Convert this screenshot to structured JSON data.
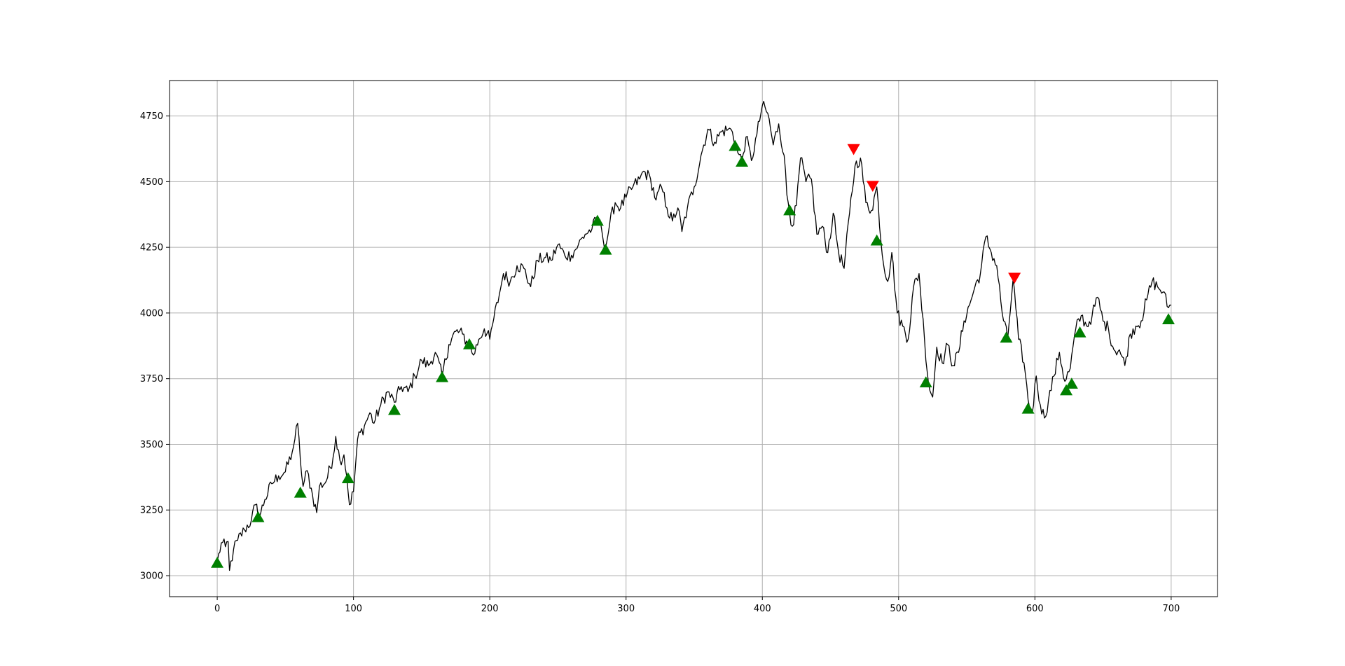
{
  "chart_data": {
    "type": "line",
    "title": "",
    "xlabel": "",
    "ylabel": "",
    "xlim": [
      -35,
      734
    ],
    "ylim": [
      2920,
      4885
    ],
    "grid": true,
    "xticks": [
      0,
      100,
      200,
      300,
      400,
      500,
      600,
      700
    ],
    "yticks": [
      3000,
      3250,
      3500,
      3750,
      4000,
      4250,
      4500,
      4750
    ],
    "xtick_labels": [
      "0",
      "100",
      "200",
      "300",
      "400",
      "500",
      "600",
      "700"
    ],
    "ytick_labels": [
      "3000",
      "3250",
      "3500",
      "3750",
      "4000",
      "4250",
      "4500",
      "4750"
    ],
    "line_color": "#000000",
    "buy_color": "#008000",
    "sell_color": "#ff0000",
    "price_anchors": [
      [
        0,
        3050
      ],
      [
        3,
        3125
      ],
      [
        6,
        3110
      ],
      [
        8,
        3130
      ],
      [
        9,
        3020
      ],
      [
        12,
        3100
      ],
      [
        15,
        3135
      ],
      [
        20,
        3175
      ],
      [
        25,
        3210
      ],
      [
        28,
        3270
      ],
      [
        31,
        3225
      ],
      [
        35,
        3290
      ],
      [
        40,
        3350
      ],
      [
        45,
        3380
      ],
      [
        50,
        3395
      ],
      [
        55,
        3470
      ],
      [
        57,
        3520
      ],
      [
        59,
        3580
      ],
      [
        61,
        3440
      ],
      [
        63,
        3340
      ],
      [
        66,
        3400
      ],
      [
        70,
        3305
      ],
      [
        73,
        3240
      ],
      [
        75,
        3340
      ],
      [
        80,
        3360
      ],
      [
        85,
        3450
      ],
      [
        87,
        3530
      ],
      [
        90,
        3440
      ],
      [
        93,
        3460
      ],
      [
        95,
        3380
      ],
      [
        97,
        3270
      ],
      [
        100,
        3320
      ],
      [
        103,
        3520
      ],
      [
        108,
        3570
      ],
      [
        112,
        3620
      ],
      [
        115,
        3580
      ],
      [
        120,
        3650
      ],
      [
        125,
        3700
      ],
      [
        130,
        3660
      ],
      [
        135,
        3720
      ],
      [
        140,
        3700
      ],
      [
        145,
        3760
      ],
      [
        150,
        3820
      ],
      [
        155,
        3800
      ],
      [
        160,
        3850
      ],
      [
        165,
        3760
      ],
      [
        170,
        3880
      ],
      [
        175,
        3930
      ],
      [
        180,
        3920
      ],
      [
        185,
        3870
      ],
      [
        188,
        3840
      ],
      [
        192,
        3900
      ],
      [
        196,
        3940
      ],
      [
        200,
        3900
      ],
      [
        203,
        3980
      ],
      [
        207,
        4070
      ],
      [
        210,
        4150
      ],
      [
        215,
        4120
      ],
      [
        220,
        4180
      ],
      [
        225,
        4170
      ],
      [
        230,
        4100
      ],
      [
        235,
        4200
      ],
      [
        240,
        4210
      ],
      [
        245,
        4200
      ],
      [
        250,
        4260
      ],
      [
        255,
        4220
      ],
      [
        260,
        4220
      ],
      [
        265,
        4260
      ],
      [
        270,
        4300
      ],
      [
        275,
        4320
      ],
      [
        279,
        4365
      ],
      [
        282,
        4320
      ],
      [
        285,
        4250
      ],
      [
        288,
        4340
      ],
      [
        292,
        4420
      ],
      [
        296,
        4400
      ],
      [
        300,
        4440
      ],
      [
        305,
        4480
      ],
      [
        310,
        4510
      ],
      [
        313,
        4540
      ],
      [
        318,
        4510
      ],
      [
        322,
        4430
      ],
      [
        326,
        4480
      ],
      [
        330,
        4400
      ],
      [
        334,
        4350
      ],
      [
        338,
        4400
      ],
      [
        341,
        4310
      ],
      [
        345,
        4400
      ],
      [
        350,
        4480
      ],
      [
        355,
        4600
      ],
      [
        360,
        4700
      ],
      [
        365,
        4650
      ],
      [
        370,
        4690
      ],
      [
        375,
        4700
      ],
      [
        378,
        4690
      ],
      [
        382,
        4610
      ],
      [
        385,
        4580
      ],
      [
        388,
        4670
      ],
      [
        392,
        4580
      ],
      [
        396,
        4680
      ],
      [
        400,
        4790
      ],
      [
        404,
        4760
      ],
      [
        408,
        4640
      ],
      [
        412,
        4720
      ],
      [
        416,
        4600
      ],
      [
        418,
        4450
      ],
      [
        422,
        4330
      ],
      [
        425,
        4410
      ],
      [
        428,
        4590
      ],
      [
        432,
        4500
      ],
      [
        436,
        4510
      ],
      [
        440,
        4300
      ],
      [
        444,
        4330
      ],
      [
        448,
        4230
      ],
      [
        452,
        4380
      ],
      [
        456,
        4230
      ],
      [
        460,
        4170
      ],
      [
        464,
        4380
      ],
      [
        468,
        4560
      ],
      [
        472,
        4590
      ],
      [
        476,
        4420
      ],
      [
        480,
        4390
      ],
      [
        484,
        4480
      ],
      [
        488,
        4220
      ],
      [
        492,
        4120
      ],
      [
        495,
        4230
      ],
      [
        499,
        4000
      ],
      [
        503,
        3950
      ],
      [
        507,
        3900
      ],
      [
        511,
        4100
      ],
      [
        515,
        4150
      ],
      [
        519,
        3900
      ],
      [
        522,
        3730
      ],
      [
        525,
        3680
      ],
      [
        528,
        3870
      ],
      [
        532,
        3810
      ],
      [
        536,
        3880
      ],
      [
        540,
        3800
      ],
      [
        544,
        3850
      ],
      [
        548,
        3970
      ],
      [
        552,
        4030
      ],
      [
        556,
        4100
      ],
      [
        560,
        4150
      ],
      [
        564,
        4290
      ],
      [
        568,
        4230
      ],
      [
        572,
        4180
      ],
      [
        576,
        4000
      ],
      [
        580,
        3900
      ],
      [
        584,
        4130
      ],
      [
        588,
        3900
      ],
      [
        592,
        3810
      ],
      [
        595,
        3670
      ],
      [
        598,
        3620
      ],
      [
        601,
        3760
      ],
      [
        604,
        3650
      ],
      [
        607,
        3600
      ],
      [
        610,
        3670
      ],
      [
        614,
        3760
      ],
      [
        618,
        3850
      ],
      [
        622,
        3740
      ],
      [
        626,
        3790
      ],
      [
        630,
        3940
      ],
      [
        634,
        3990
      ],
      [
        638,
        3950
      ],
      [
        642,
        3990
      ],
      [
        646,
        4060
      ],
      [
        650,
        3970
      ],
      [
        654,
        3940
      ],
      [
        658,
        3860
      ],
      [
        662,
        3860
      ],
      [
        666,
        3800
      ],
      [
        670,
        3920
      ],
      [
        674,
        3950
      ],
      [
        678,
        3970
      ],
      [
        682,
        4050
      ],
      [
        686,
        4120
      ],
      [
        690,
        4100
      ],
      [
        694,
        4080
      ],
      [
        698,
        4020
      ],
      [
        700,
        4030
      ]
    ],
    "buy_signals": [
      [
        0,
        3048
      ],
      [
        30,
        3222
      ],
      [
        61,
        3315
      ],
      [
        96,
        3370
      ],
      [
        130,
        3630
      ],
      [
        165,
        3755
      ],
      [
        185,
        3880
      ],
      [
        279,
        4350
      ],
      [
        285,
        4240
      ],
      [
        380,
        4635
      ],
      [
        385,
        4575
      ],
      [
        420,
        4390
      ],
      [
        484,
        4275
      ],
      [
        520,
        3735
      ],
      [
        579,
        3905
      ],
      [
        595,
        3635
      ],
      [
        623,
        3705
      ],
      [
        627,
        3730
      ],
      [
        633,
        3925
      ],
      [
        698,
        3975
      ]
    ],
    "sell_signals": [
      [
        467,
        4625
      ],
      [
        481,
        4485
      ],
      [
        585,
        4135
      ]
    ]
  }
}
